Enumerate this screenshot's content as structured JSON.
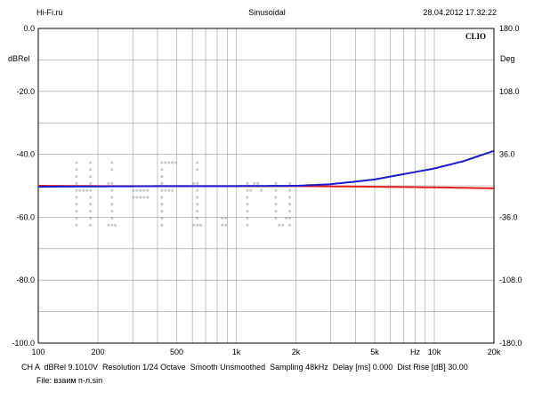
{
  "header": {
    "left": "Hi-Fi.ru",
    "center": "Sinusoidal",
    "right": "28.04.2012 17.32.22"
  },
  "brand": "CLIO",
  "watermark": {
    "text": "Hi-Fi.ru"
  },
  "left_axis_unit": "dBRel",
  "right_axis_unit": "Deg",
  "footer": {
    "line1": "CH A  dBRel 9.1010V  Resolution 1/24 Octave  Smooth Unsmoothed  Sampling 48kHz  Delay [ms] 0.000  Dist Rise [dB] 30.00",
    "line2": "File: взаим п-л.sin"
  },
  "colors": {
    "series_blue": "#1a1ad0",
    "series_red": "#e21d1d",
    "grid": "#9a9a9a",
    "watermark": "#c8c8c8"
  },
  "chart_data": {
    "type": "line",
    "x_scale": "log",
    "xlim": [
      100,
      20000
    ],
    "ylim": [
      -100,
      0
    ],
    "y2lim": [
      -180,
      180
    ],
    "grid": true,
    "x_ticks": [
      {
        "value": 100,
        "label": "100"
      },
      {
        "value": 200,
        "label": "200"
      },
      {
        "value": 500,
        "label": "500"
      },
      {
        "value": 1000,
        "label": "1k"
      },
      {
        "value": 2000,
        "label": "2k"
      },
      {
        "value": 5000,
        "label": "5k"
      },
      {
        "value": 8000,
        "label": "Hz"
      },
      {
        "value": 10000,
        "label": "10k"
      },
      {
        "value": 20000,
        "label": "20k"
      }
    ],
    "y_ticks": [
      {
        "value": 0,
        "label": "0.0"
      },
      {
        "value": -20,
        "label": "-20.0"
      },
      {
        "value": -40,
        "label": "-40.0"
      },
      {
        "value": -60,
        "label": "-60.0"
      },
      {
        "value": -80,
        "label": "-80.0"
      },
      {
        "value": -100,
        "label": "-100.0"
      }
    ],
    "y2_ticks": [
      {
        "value": 180,
        "label": "180.0"
      },
      {
        "value": 108,
        "label": "108.0"
      },
      {
        "value": 36,
        "label": "36.0"
      },
      {
        "value": -36,
        "label": "-36.0"
      },
      {
        "value": -108,
        "label": "-108.0"
      },
      {
        "value": -180,
        "label": "-180.0"
      }
    ],
    "series": [
      {
        "color": "#1a1ad0",
        "x": [
          100,
          200,
          500,
          1000,
          2000,
          3000,
          5000,
          7000,
          10000,
          14000,
          20000
        ],
        "y": [
          -50.3,
          -50.2,
          -50.1,
          -50.1,
          -50.0,
          -49.5,
          -48.0,
          -46.3,
          -44.5,
          -42.2,
          -38.9
        ]
      },
      {
        "color": "#e21d1d",
        "x": [
          100,
          200,
          500,
          1000,
          2000,
          5000,
          10000,
          20000
        ],
        "y": [
          -50.0,
          -50.1,
          -50.1,
          -50.1,
          -50.1,
          -50.3,
          -50.5,
          -50.8
        ]
      }
    ]
  }
}
